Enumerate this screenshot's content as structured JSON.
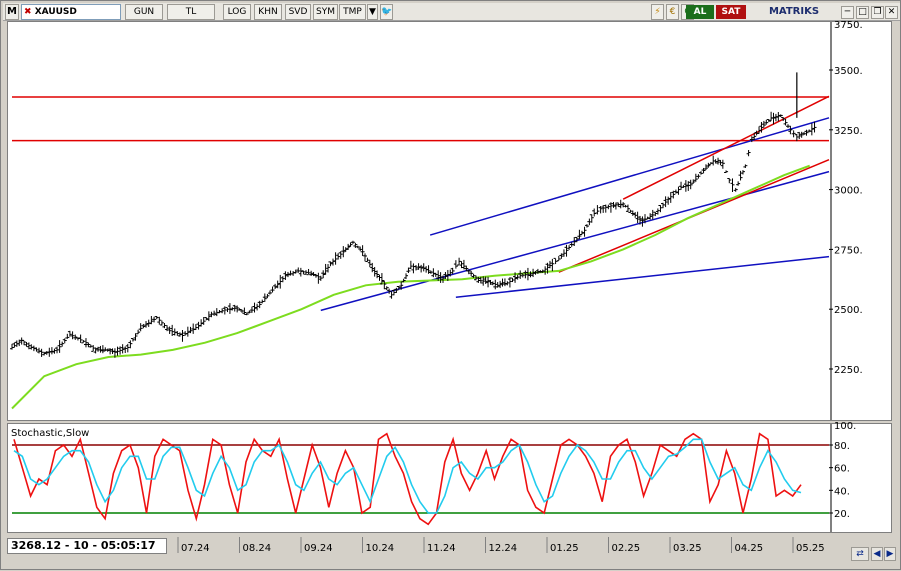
{
  "toolbar": {
    "app_letter": "M",
    "symbol": "XAUUSD",
    "buttons": [
      "GUN",
      "TL",
      "LOG",
      "KHN",
      "SVD",
      "SYM",
      "TMP"
    ],
    "buy_label": "AL",
    "sell_label": "SAT",
    "brand": "MATRIKS"
  },
  "colors": {
    "price": "#000000",
    "moving_average": "#7ddc1f",
    "resistance": "#e00000",
    "channel_blue": "#1010c0",
    "stoch_k": "#ee1111",
    "stoch_d": "#22ccee",
    "stoch_upper_band": "#8b0000",
    "stoch_lower_band": "#008000",
    "buy_badge": "#1b6e1b",
    "sell_badge": "#b01010"
  },
  "status": {
    "value": "3268.12 - 10 - 05:05:17"
  },
  "chart_data": [
    {
      "type": "line",
      "name": "price",
      "y_ticks": [
        "3500.",
        "3250.",
        "3000.",
        "2750.",
        "2500.",
        "2250."
      ],
      "y_top_cut_label": "3750.",
      "ylim": [
        2050,
        3800
      ],
      "x_ticks": [
        "07.24",
        "08.24",
        "09.24",
        "10.24",
        "11.24",
        "12.24",
        "01.25",
        "02.25",
        "03.25",
        "04.25",
        "05.25"
      ],
      "price_points": [
        [
          0,
          2340
        ],
        [
          0.3,
          2370
        ],
        [
          0.6,
          2340
        ],
        [
          1.0,
          2315
        ],
        [
          1.4,
          2330
        ],
        [
          1.8,
          2395
        ],
        [
          2.3,
          2360
        ],
        [
          2.6,
          2330
        ],
        [
          2.9,
          2330
        ],
        [
          3.2,
          2320
        ],
        [
          3.6,
          2340
        ],
        [
          4.0,
          2420
        ],
        [
          4.5,
          2465
        ],
        [
          4.9,
          2410
        ],
        [
          5.3,
          2390
        ],
        [
          5.8,
          2430
        ],
        [
          6.2,
          2480
        ],
        [
          6.7,
          2500
        ],
        [
          7.0,
          2505
        ],
        [
          7.3,
          2480
        ],
        [
          7.7,
          2520
        ],
        [
          8.1,
          2580
        ],
        [
          8.5,
          2640
        ],
        [
          8.9,
          2660
        ],
        [
          9.3,
          2650
        ],
        [
          9.6,
          2630
        ],
        [
          9.9,
          2690
        ],
        [
          10.3,
          2740
        ],
        [
          10.6,
          2780
        ],
        [
          10.9,
          2740
        ],
        [
          11.2,
          2670
        ],
        [
          11.5,
          2620
        ],
        [
          11.8,
          2560
        ],
        [
          12.1,
          2600
        ],
        [
          12.4,
          2680
        ],
        [
          12.8,
          2670
        ],
        [
          13.1,
          2650
        ],
        [
          13.4,
          2630
        ],
        [
          13.7,
          2660
        ],
        [
          13.9,
          2700
        ],
        [
          14.2,
          2660
        ],
        [
          14.5,
          2620
        ],
        [
          14.8,
          2615
        ],
        [
          15.1,
          2600
        ],
        [
          15.4,
          2610
        ],
        [
          15.8,
          2640
        ],
        [
          16.2,
          2650
        ],
        [
          16.5,
          2660
        ],
        [
          16.8,
          2690
        ],
        [
          17.0,
          2710
        ],
        [
          17.4,
          2770
        ],
        [
          17.8,
          2830
        ],
        [
          18.1,
          2900
        ],
        [
          18.3,
          2920
        ],
        [
          18.7,
          2935
        ],
        [
          19.0,
          2940
        ],
        [
          19.3,
          2900
        ],
        [
          19.6,
          2870
        ],
        [
          20.0,
          2900
        ],
        [
          20.4,
          2960
        ],
        [
          20.8,
          3010
        ],
        [
          21.1,
          3020
        ],
        [
          21.5,
          3080
        ],
        [
          21.8,
          3120
        ],
        [
          22.1,
          3110
        ],
        [
          22.3,
          3040
        ],
        [
          22.5,
          3000
        ],
        [
          22.8,
          3100
        ],
        [
          23.0,
          3210
        ],
        [
          23.3,
          3260
        ],
        [
          23.6,
          3300
        ],
        [
          23.9,
          3310
        ],
        [
          24.2,
          3250
        ],
        [
          24.4,
          3220
        ],
        [
          24.7,
          3238
        ],
        [
          24.95,
          3260
        ]
      ],
      "price_spike": [
        24.4,
        3490
      ],
      "moving_average_points": [
        [
          0,
          2085
        ],
        [
          1,
          2220
        ],
        [
          2,
          2270
        ],
        [
          3,
          2300
        ],
        [
          4,
          2310
        ],
        [
          5,
          2330
        ],
        [
          6,
          2360
        ],
        [
          7,
          2400
        ],
        [
          8,
          2450
        ],
        [
          9,
          2500
        ],
        [
          10,
          2560
        ],
        [
          11,
          2600
        ],
        [
          12,
          2615
        ],
        [
          13,
          2620
        ],
        [
          14,
          2625
        ],
        [
          15,
          2640
        ],
        [
          16,
          2650
        ],
        [
          17,
          2660
        ],
        [
          18,
          2700
        ],
        [
          19,
          2750
        ],
        [
          20,
          2810
        ],
        [
          21,
          2880
        ],
        [
          22,
          2940
        ],
        [
          23,
          3000
        ],
        [
          24,
          3060
        ],
        [
          24.8,
          3100
        ]
      ],
      "horizontal_levels": [
        3387,
        3205
      ],
      "red_channel_lines": [
        [
          [
            17.0,
            2655
          ],
          [
            25.4,
            3125
          ]
        ],
        [
          [
            19.0,
            2960
          ],
          [
            25.4,
            3390
          ]
        ]
      ],
      "blue_channel_lines": [
        [
          [
            9.6,
            2495
          ],
          [
            25.4,
            3075
          ]
        ],
        [
          [
            13.0,
            2810
          ],
          [
            25.4,
            3300
          ]
        ],
        [
          [
            13.8,
            2550
          ],
          [
            25.4,
            2720
          ]
        ]
      ]
    },
    {
      "type": "line",
      "name": "Stochastic,Slow",
      "title": "Stochastic,Slow",
      "y_ticks": [
        "80.",
        "60.",
        "40.",
        "20."
      ],
      "y_top_cut_label": "100.",
      "ylim": [
        0,
        100
      ],
      "upper_band": 80,
      "lower_band": 20,
      "k_values": [
        85,
        60,
        35,
        50,
        45,
        75,
        80,
        70,
        85,
        55,
        25,
        15,
        55,
        75,
        80,
        60,
        20,
        70,
        85,
        80,
        75,
        40,
        15,
        45,
        85,
        80,
        45,
        20,
        65,
        85,
        75,
        70,
        85,
        50,
        20,
        50,
        80,
        60,
        25,
        55,
        75,
        60,
        20,
        25,
        85,
        90,
        70,
        55,
        30,
        15,
        10,
        20,
        65,
        85,
        55,
        40,
        55,
        75,
        50,
        70,
        85,
        80,
        40,
        25,
        20,
        50,
        80,
        85,
        80,
        70,
        55,
        30,
        70,
        80,
        85,
        65,
        35,
        55,
        80,
        75,
        70,
        85,
        90,
        85,
        30,
        45,
        75,
        55,
        20,
        50,
        90,
        85,
        35,
        40,
        35,
        45
      ],
      "d_values": [
        75,
        70,
        50,
        45,
        50,
        60,
        70,
        75,
        75,
        65,
        45,
        30,
        40,
        60,
        70,
        70,
        50,
        50,
        70,
        78,
        78,
        60,
        40,
        35,
        55,
        70,
        60,
        40,
        45,
        65,
        75,
        75,
        80,
        65,
        45,
        40,
        55,
        65,
        50,
        45,
        55,
        60,
        45,
        30,
        50,
        70,
        78,
        65,
        45,
        30,
        20,
        20,
        35,
        60,
        65,
        55,
        50,
        60,
        60,
        65,
        75,
        80,
        65,
        45,
        30,
        35,
        55,
        70,
        80,
        75,
        65,
        50,
        50,
        65,
        75,
        75,
        60,
        50,
        60,
        70,
        72,
        78,
        85,
        85,
        65,
        50,
        55,
        60,
        45,
        40,
        60,
        75,
        65,
        50,
        40,
        38
      ]
    }
  ]
}
